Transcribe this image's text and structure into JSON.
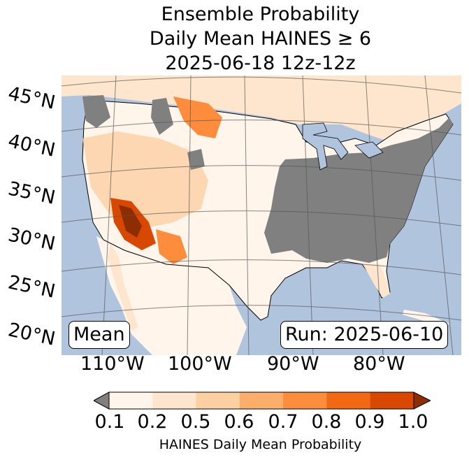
{
  "title": {
    "line1": "Ensemble Probability",
    "line2": "Daily Mean HAINES ≥ 6",
    "line3": "2025-06-18 12z-12z"
  },
  "map": {
    "lat_labels": [
      "45°N",
      "40°N",
      "35°N",
      "30°N",
      "25°N",
      "20°N"
    ],
    "lon_labels": [
      "110°W",
      "100°W",
      "90°W",
      "80°W"
    ],
    "mean_label": "Mean",
    "run_label": "Run: 2025-06-10",
    "colors": {
      "ocean": "#b0c4de",
      "no_data_gray": "#808080",
      "land_low": "#fff5eb"
    }
  },
  "colorbar": {
    "ticks": [
      "0.1",
      "0.2",
      "0.5",
      "0.6",
      "0.7",
      "0.8",
      "0.9",
      "1.0"
    ],
    "colors": [
      "#fff5eb",
      "#fee6ce",
      "#fdd0a2",
      "#fdae6b",
      "#fd8d3c",
      "#f16913",
      "#d94801",
      "#8c2d04"
    ],
    "under_color": "#808080",
    "label": "HAINES Daily Mean Probability"
  }
}
